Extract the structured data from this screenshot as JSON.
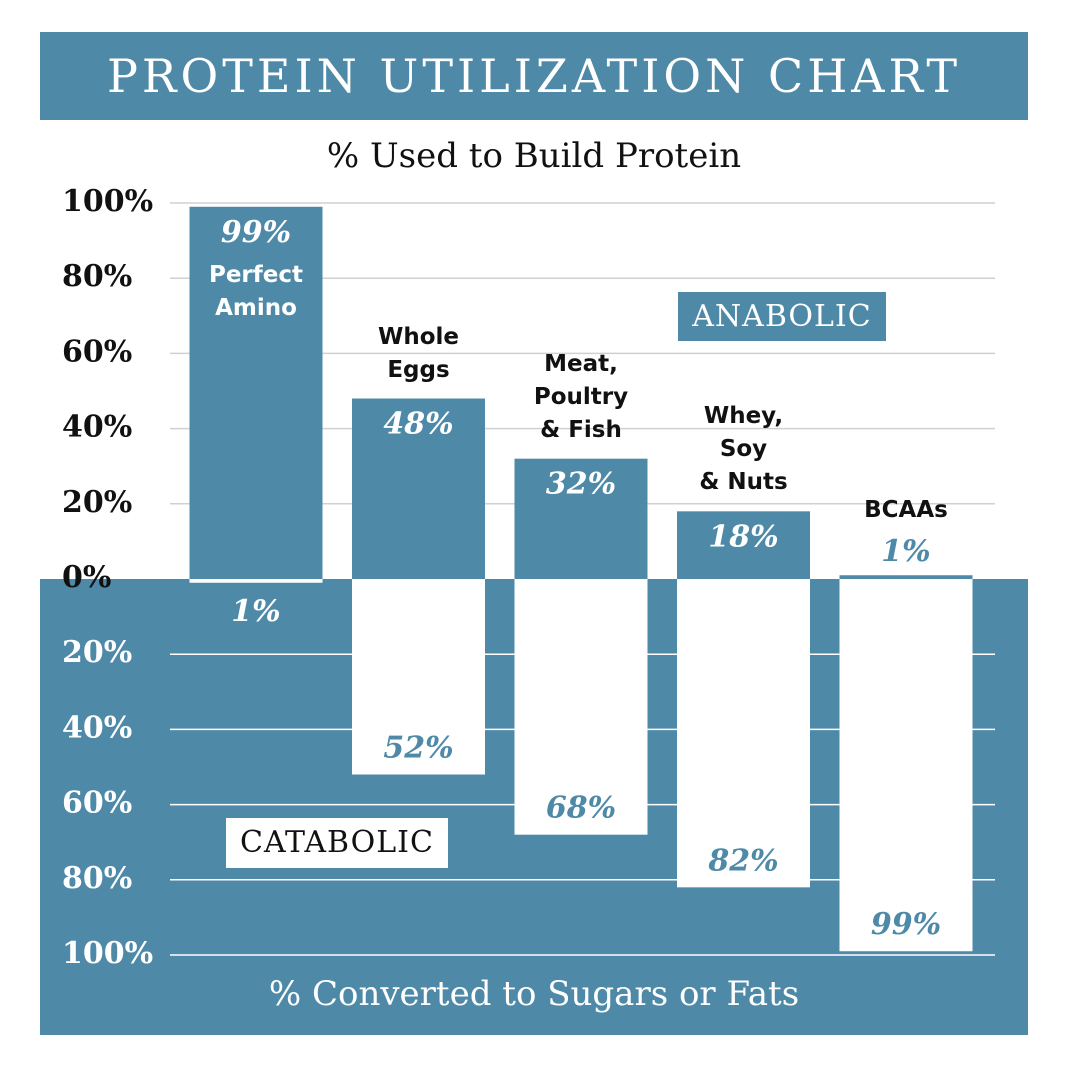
{
  "chart_data": {
    "type": "diverging-bar",
    "title": "PROTEIN UTILIZATION CHART",
    "upper_axis_label": "% Used to Build Protein",
    "lower_axis_label": "% Converted to Sugars or Fats",
    "categories": [
      "Perfect\nAmino",
      "Whole\nEggs",
      "Meat,\nPoultry\n& Fish",
      "Whey,\nSoy\n& Nuts",
      "BCAAs"
    ],
    "series": [
      {
        "name": "ANABOLIC",
        "color": "#4e8aa8",
        "values": [
          99,
          48,
          32,
          18,
          1
        ],
        "value_labels": [
          "99%",
          "48%",
          "32%",
          "18%",
          "1%"
        ]
      },
      {
        "name": "CATABOLIC",
        "color": "#ffffff",
        "values": [
          -1,
          -52,
          -68,
          -82,
          -99
        ],
        "value_labels": [
          "1%",
          "52%",
          "68%",
          "82%",
          "99%"
        ]
      }
    ],
    "ylim": [
      -100,
      100
    ],
    "yticks": [
      {
        "value": 100,
        "label": "100%"
      },
      {
        "value": 80,
        "label": "80%"
      },
      {
        "value": 60,
        "label": "60%"
      },
      {
        "value": 40,
        "label": "40%"
      },
      {
        "value": 20,
        "label": "20%"
      },
      {
        "value": 0,
        "label": "0%"
      },
      {
        "value": -20,
        "label": "20%"
      },
      {
        "value": -40,
        "label": "40%"
      },
      {
        "value": -60,
        "label": "60%"
      },
      {
        "value": -80,
        "label": "80%"
      },
      {
        "value": -100,
        "label": "100%"
      }
    ],
    "grid": true
  }
}
